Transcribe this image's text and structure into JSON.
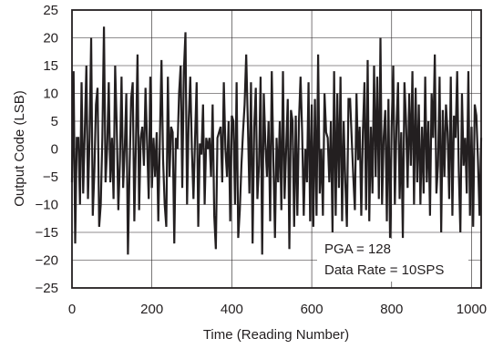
{
  "chart_data": {
    "type": "line",
    "xlabel": "Time (Reading Number)",
    "ylabel": "Output Code (LSB)",
    "xlim": [
      0,
      1024
    ],
    "ylim": [
      -25,
      25
    ],
    "x_ticks": [
      {
        "value": 0,
        "label": "0"
      },
      {
        "value": 200,
        "label": "200"
      },
      {
        "value": 400,
        "label": "400"
      },
      {
        "value": 600,
        "label": "600"
      },
      {
        "value": 800,
        "label": "800"
      },
      {
        "value": 1000,
        "label": "1000"
      }
    ],
    "y_ticks": [
      {
        "value": 25,
        "label": "25"
      },
      {
        "value": 20,
        "label": "20"
      },
      {
        "value": 15,
        "label": "15"
      },
      {
        "value": 10,
        "label": "10"
      },
      {
        "value": 5,
        "label": "5"
      },
      {
        "value": 0,
        "label": "0"
      },
      {
        "value": -5,
        "label": "−5"
      },
      {
        "value": -10,
        "label": "−10"
      },
      {
        "value": -15,
        "label": "−15"
      },
      {
        "value": -20,
        "label": "−20"
      },
      {
        "value": -25,
        "label": "−25"
      }
    ],
    "grid": true,
    "annotations": [
      "PGA = 128",
      "Data Rate = 10SPS"
    ],
    "series": [
      {
        "color": "#231f20",
        "x_start": 0,
        "x_step": 4,
        "values": [
          -6,
          14,
          -17,
          2,
          2,
          -10,
          12,
          -8,
          3,
          15,
          -9,
          2,
          20,
          -12,
          -4,
          8,
          11,
          -14,
          -10,
          2,
          22,
          -6,
          0,
          12,
          -6,
          2,
          -9,
          15,
          4,
          -11,
          -2,
          13,
          -7,
          0,
          10,
          -19,
          -4,
          9,
          12,
          -13,
          1,
          17,
          -11,
          2,
          4,
          -3,
          11,
          1,
          -9,
          13,
          -7,
          2,
          -5,
          3,
          -13,
          2,
          16,
          -2,
          -10,
          -14,
          13,
          -5,
          4,
          3,
          -17,
          2,
          0,
          10,
          15,
          -7,
          14,
          21,
          -10,
          5,
          13,
          0,
          -9,
          2,
          12,
          -14,
          1,
          -1,
          8,
          -10,
          2,
          0,
          2,
          -5,
          8,
          -12,
          -18,
          2,
          3,
          4,
          -6,
          12,
          0,
          -5,
          5,
          -13,
          6,
          5,
          -10,
          12,
          -16,
          -11,
          -3,
          3,
          8,
          17,
          5,
          -8,
          12,
          -17,
          4,
          11,
          -9,
          -3,
          13,
          -19,
          10,
          1,
          -5,
          5,
          -13,
          14,
          -2,
          -16,
          2,
          -6,
          5,
          -11,
          14,
          -9,
          0,
          9,
          -18,
          7,
          5,
          -14,
          6,
          -12,
          5,
          13,
          3,
          -12,
          0,
          -6,
          12,
          -13,
          8,
          -14,
          9,
          -12,
          17,
          -8,
          0,
          -12,
          10,
          3,
          2,
          -6,
          5,
          -15,
          14,
          -12,
          10,
          -7,
          13,
          -13,
          5,
          -6,
          -14,
          9,
          9,
          2,
          -5,
          -11,
          10,
          -2,
          4,
          -12,
          3,
          12,
          -11,
          16,
          -13,
          4,
          -8,
          15,
          -5,
          13,
          -9,
          20,
          -10,
          2,
          7,
          -13,
          9,
          -16,
          4,
          15,
          -10,
          4,
          12,
          -9,
          3,
          -16,
          12,
          5,
          -7,
          10,
          -3,
          14,
          -10,
          11,
          -6,
          8,
          -10,
          4,
          -8,
          13,
          -6,
          5,
          -12,
          10,
          2,
          17,
          -8,
          -3,
          13,
          -15,
          7,
          -5,
          8,
          3,
          -9,
          13,
          -12,
          6,
          2,
          14,
          -4,
          -15,
          10,
          -3,
          2,
          -8,
          14,
          -12,
          4,
          -14,
          8,
          6,
          -2,
          -12,
          2,
          -15,
          8,
          -5,
          2
        ]
      }
    ]
  }
}
